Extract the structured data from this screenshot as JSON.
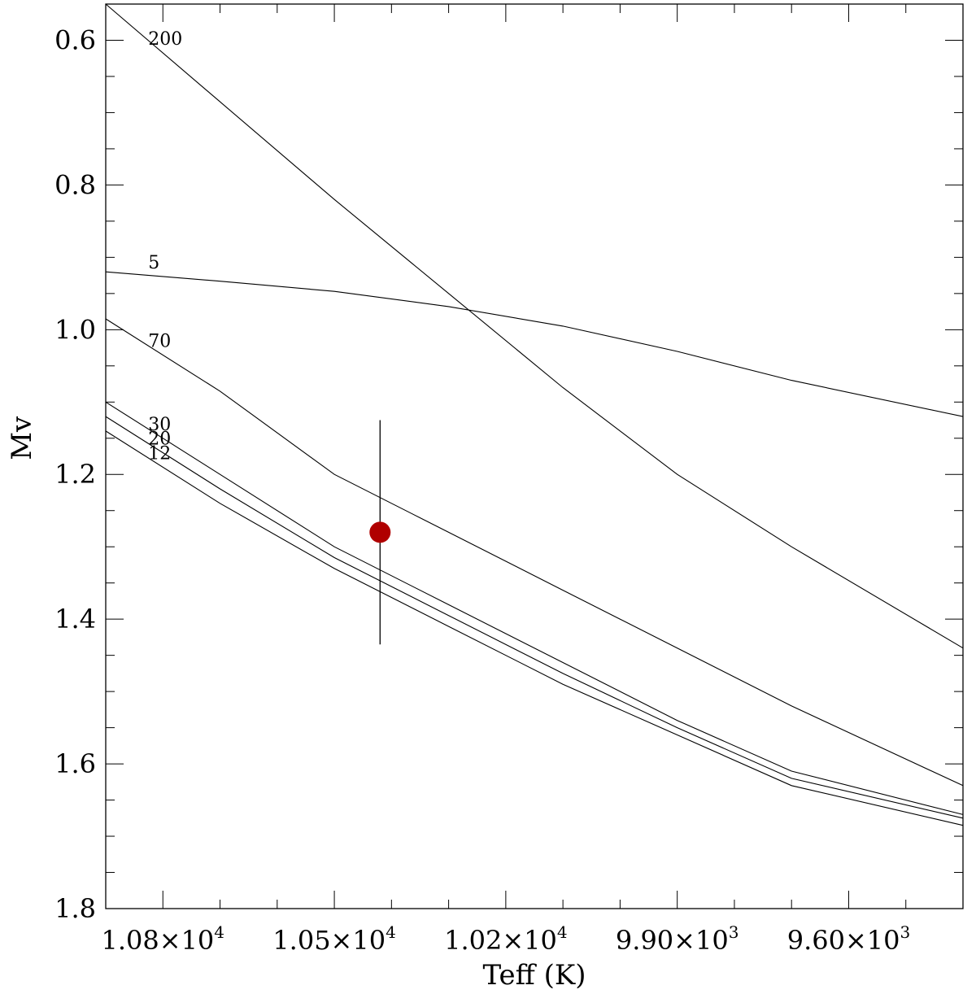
{
  "chart_data": {
    "type": "line",
    "xlabel": "Teff (K)",
    "ylabel": "Mv",
    "xlim": [
      10900,
      9400
    ],
    "ylim": [
      1.8,
      0.55
    ],
    "x_ticks": [
      {
        "value": 10800,
        "mantissa": "1.08×10",
        "exp": "4"
      },
      {
        "value": 10500,
        "mantissa": "1.05×10",
        "exp": "4"
      },
      {
        "value": 10200,
        "mantissa": "1.02×10",
        "exp": "4"
      },
      {
        "value": 9900,
        "mantissa": "9.90×10",
        "exp": "3"
      },
      {
        "value": 9600,
        "mantissa": "9.60×10",
        "exp": "3"
      }
    ],
    "y_ticks": [
      {
        "value": 0.6,
        "label": "0.6"
      },
      {
        "value": 0.8,
        "label": "0.8"
      },
      {
        "value": 1.0,
        "label": "1.0"
      },
      {
        "value": 1.2,
        "label": "1.2"
      },
      {
        "value": 1.4,
        "label": "1.4"
      },
      {
        "value": 1.6,
        "label": "1.6"
      },
      {
        "value": 1.8,
        "label": "1.8"
      }
    ],
    "series": [
      {
        "name": "200",
        "x": [
          10900,
          10700,
          10500,
          10300,
          10100,
          9900,
          9700,
          9400
        ],
        "y": [
          0.55,
          0.685,
          0.82,
          0.95,
          1.08,
          1.2,
          1.3,
          1.44
        ]
      },
      {
        "name": "5",
        "x": [
          10900,
          10700,
          10500,
          10300,
          10100,
          9900,
          9700,
          9400
        ],
        "y": [
          0.92,
          0.933,
          0.947,
          0.968,
          0.995,
          1.03,
          1.07,
          1.12
        ]
      },
      {
        "name": "70",
        "x": [
          10900,
          10700,
          10500,
          10300,
          10100,
          9900,
          9700,
          9400
        ],
        "y": [
          0.985,
          1.085,
          1.2,
          1.28,
          1.36,
          1.44,
          1.52,
          1.63
        ]
      },
      {
        "name": "30",
        "x": [
          10900,
          10700,
          10500,
          10300,
          10100,
          9900,
          9700,
          9400
        ],
        "y": [
          1.1,
          1.2,
          1.3,
          1.38,
          1.46,
          1.54,
          1.61,
          1.67
        ]
      },
      {
        "name": "20",
        "x": [
          10900,
          10700,
          10500,
          10300,
          10100,
          9900,
          9700,
          9400
        ],
        "y": [
          1.12,
          1.22,
          1.315,
          1.395,
          1.475,
          1.55,
          1.62,
          1.675
        ]
      },
      {
        "name": "12",
        "x": [
          10900,
          10700,
          10500,
          10300,
          10100,
          9900,
          9700,
          9400
        ],
        "y": [
          1.14,
          1.24,
          1.33,
          1.41,
          1.49,
          1.56,
          1.63,
          1.685
        ]
      }
    ],
    "point": {
      "x": 10420,
      "y": 1.28,
      "y_low": 1.125,
      "y_high": 1.435,
      "color": "#b00000"
    },
    "grid": false,
    "legend": "inline labels at left"
  }
}
